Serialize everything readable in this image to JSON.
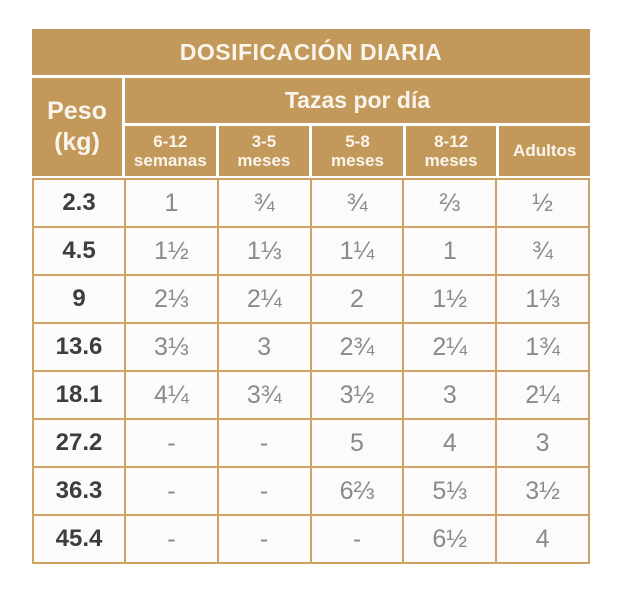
{
  "header": {
    "peso_line1": "Peso",
    "peso_line2": "(kg)",
    "columns": [
      {
        "line1": "6-12",
        "line2": "semanas"
      },
      {
        "line1": "3-5",
        "line2": "meses"
      },
      {
        "line1": "5-8",
        "line2": "meses"
      },
      {
        "line1": "8-12",
        "line2": "meses"
      },
      {
        "line1": "Adultos"
      }
    ]
  },
  "chart_data": {
    "type": "table",
    "title": "DOSIFICACIÓN DIARIA",
    "group_header": "Tazas por día",
    "row_header": "Peso (kg)",
    "columns": [
      "6-12 semanas",
      "3-5 meses",
      "5-8 meses",
      "8-12 meses",
      "Adultos"
    ],
    "rows": [
      {
        "peso_kg": "2.3",
        "values": [
          "1",
          "¾",
          "¾",
          "⅔",
          "½"
        ]
      },
      {
        "peso_kg": "4.5",
        "values": [
          "1½",
          "1⅓",
          "1¼",
          "1",
          "¾"
        ]
      },
      {
        "peso_kg": "9",
        "values": [
          "2⅓",
          "2¼",
          "2",
          "1½",
          "1⅓"
        ]
      },
      {
        "peso_kg": "13.6",
        "values": [
          "3⅓",
          "3",
          "2¾",
          "2¼",
          "1¾"
        ]
      },
      {
        "peso_kg": "18.1",
        "values": [
          "4¼",
          "3¾",
          "3½",
          "3",
          "2¼"
        ]
      },
      {
        "peso_kg": "27.2",
        "values": [
          "-",
          "-",
          "5",
          "4",
          "3"
        ]
      },
      {
        "peso_kg": "36.3",
        "values": [
          "-",
          "-",
          "6⅔",
          "5⅓",
          "3½"
        ]
      },
      {
        "peso_kg": "45.4",
        "values": [
          "-",
          "-",
          "-",
          "6½",
          "4"
        ]
      }
    ]
  },
  "colors": {
    "header_bg": "#C2995B",
    "grid_lines": "#CDA263",
    "header_text": "#FAF5EC",
    "weight_text": "#3D3D3D",
    "value_text": "#8A8A8A",
    "cell_bg": "#FCFBF9",
    "page_bg": "#FFFFFF"
  }
}
